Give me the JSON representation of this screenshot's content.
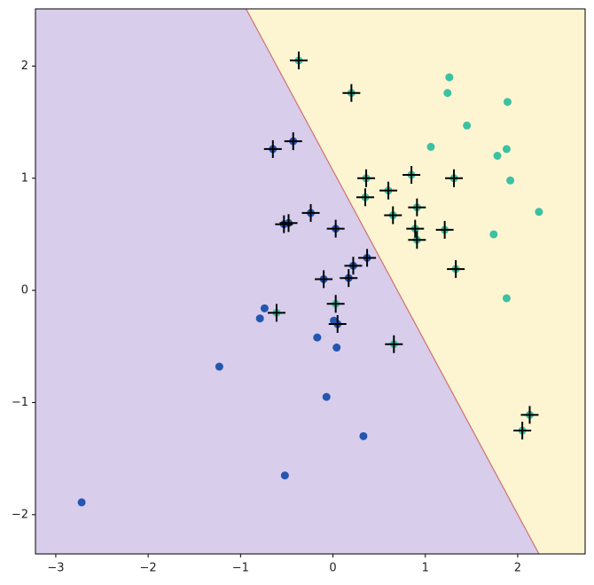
{
  "chart_data": {
    "type": "scatter",
    "xlim": [
      -3.22,
      2.73
    ],
    "ylim": [
      -2.35,
      2.51
    ],
    "xticks": [
      {
        "value": -3,
        "label": "−3"
      },
      {
        "value": -2,
        "label": "−2"
      },
      {
        "value": -1,
        "label": "−1"
      },
      0,
      1,
      2
    ],
    "yticks": [
      {
        "value": -2,
        "label": "−2"
      },
      {
        "value": -1,
        "label": "−1"
      },
      0,
      1,
      2
    ],
    "boundary": {
      "x": [
        -0.94,
        2.23
      ],
      "y": [
        2.51,
        -2.35
      ],
      "color": "#d07070",
      "left_color": "#d8cdeb",
      "right_color": "#fdf5d2"
    },
    "series": [
      {
        "color": "#2356b0",
        "marker": "dot",
        "x": [
          -2.72,
          -1.23,
          -0.74,
          -0.79,
          -0.17,
          0.04,
          -0.07,
          0.33,
          -0.52,
          0.01,
          -0.65,
          -0.43,
          -0.24,
          -0.53,
          -0.48,
          0.03,
          0.37,
          0.22,
          0.17,
          -0.1,
          0.05
        ],
        "y": [
          -1.89,
          -0.68,
          -0.16,
          -0.25,
          -0.42,
          -0.51,
          -0.95,
          -1.3,
          -1.65,
          -0.27,
          1.26,
          1.33,
          0.69,
          0.59,
          0.6,
          0.55,
          0.29,
          0.22,
          0.11,
          0.1,
          -0.3
        ]
      },
      {
        "color": "#3cc1a2",
        "marker": "dot",
        "x": [
          1.26,
          1.24,
          1.45,
          1.06,
          1.89,
          1.88,
          1.78,
          1.92,
          2.23,
          1.74,
          1.88,
          -0.37,
          0.2,
          0.36,
          0.6,
          0.85,
          1.31,
          0.35,
          0.65,
          0.91,
          0.89,
          0.91,
          1.21,
          1.33,
          0.03,
          -0.61,
          0.66,
          2.13,
          2.05
        ],
        "y": [
          1.9,
          1.76,
          1.47,
          1.28,
          1.68,
          1.26,
          1.2,
          0.98,
          0.7,
          0.5,
          -0.07,
          2.05,
          1.76,
          1.0,
          0.89,
          1.03,
          1.0,
          0.83,
          0.67,
          0.74,
          0.55,
          0.45,
          0.54,
          0.19,
          -0.12,
          -0.2,
          -0.48,
          -1.11,
          -1.25
        ]
      },
      {
        "color": "#000000",
        "marker": "plus",
        "x": [
          -0.37,
          0.2,
          -0.65,
          -0.43,
          0.36,
          0.6,
          0.85,
          1.31,
          0.35,
          0.65,
          0.91,
          -0.24,
          -0.53,
          -0.48,
          0.03,
          0.89,
          0.91,
          1.21,
          1.33,
          0.37,
          0.22,
          0.17,
          -0.1,
          0.03,
          -0.61,
          0.05,
          0.66,
          2.13,
          2.05
        ],
        "y": [
          2.05,
          1.76,
          1.26,
          1.33,
          1.0,
          0.89,
          1.03,
          1.0,
          0.83,
          0.67,
          0.74,
          0.69,
          0.59,
          0.6,
          0.55,
          0.55,
          0.45,
          0.54,
          0.19,
          0.29,
          0.22,
          0.11,
          0.1,
          -0.12,
          -0.2,
          -0.3,
          -0.48,
          -1.11,
          -1.25
        ]
      }
    ]
  }
}
